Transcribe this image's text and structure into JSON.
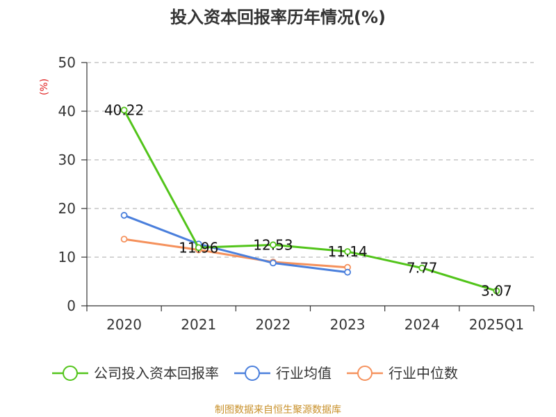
{
  "chart_data": {
    "type": "line",
    "title": "投入资本回报率历年情况(%)",
    "ylabel": "(%)",
    "xlabel": "",
    "ylim": [
      0,
      50
    ],
    "yticks": [
      0,
      10,
      20,
      30,
      40,
      50
    ],
    "grid": true,
    "legend_position": "bottom",
    "categories": [
      "2020",
      "2021",
      "2022",
      "2023",
      "2024",
      "2025Q1"
    ],
    "series": [
      {
        "name": "公司投入资本回报率",
        "color": "#52c41a",
        "values": [
          40.22,
          11.96,
          12.53,
          11.14,
          7.77,
          3.07
        ],
        "labels": [
          "40.22",
          "11.96",
          "12.53",
          "11.14",
          "7.77",
          "3.07"
        ]
      },
      {
        "name": "行业均值",
        "color": "#4a7fdc",
        "values": [
          18.6,
          12.7,
          8.8,
          6.9,
          null,
          null
        ]
      },
      {
        "name": "行业中位数",
        "color": "#f5915c",
        "values": [
          13.7,
          11.5,
          9.0,
          7.9,
          null,
          null
        ]
      }
    ],
    "source": "制图数据来自恒生聚源数据库"
  }
}
